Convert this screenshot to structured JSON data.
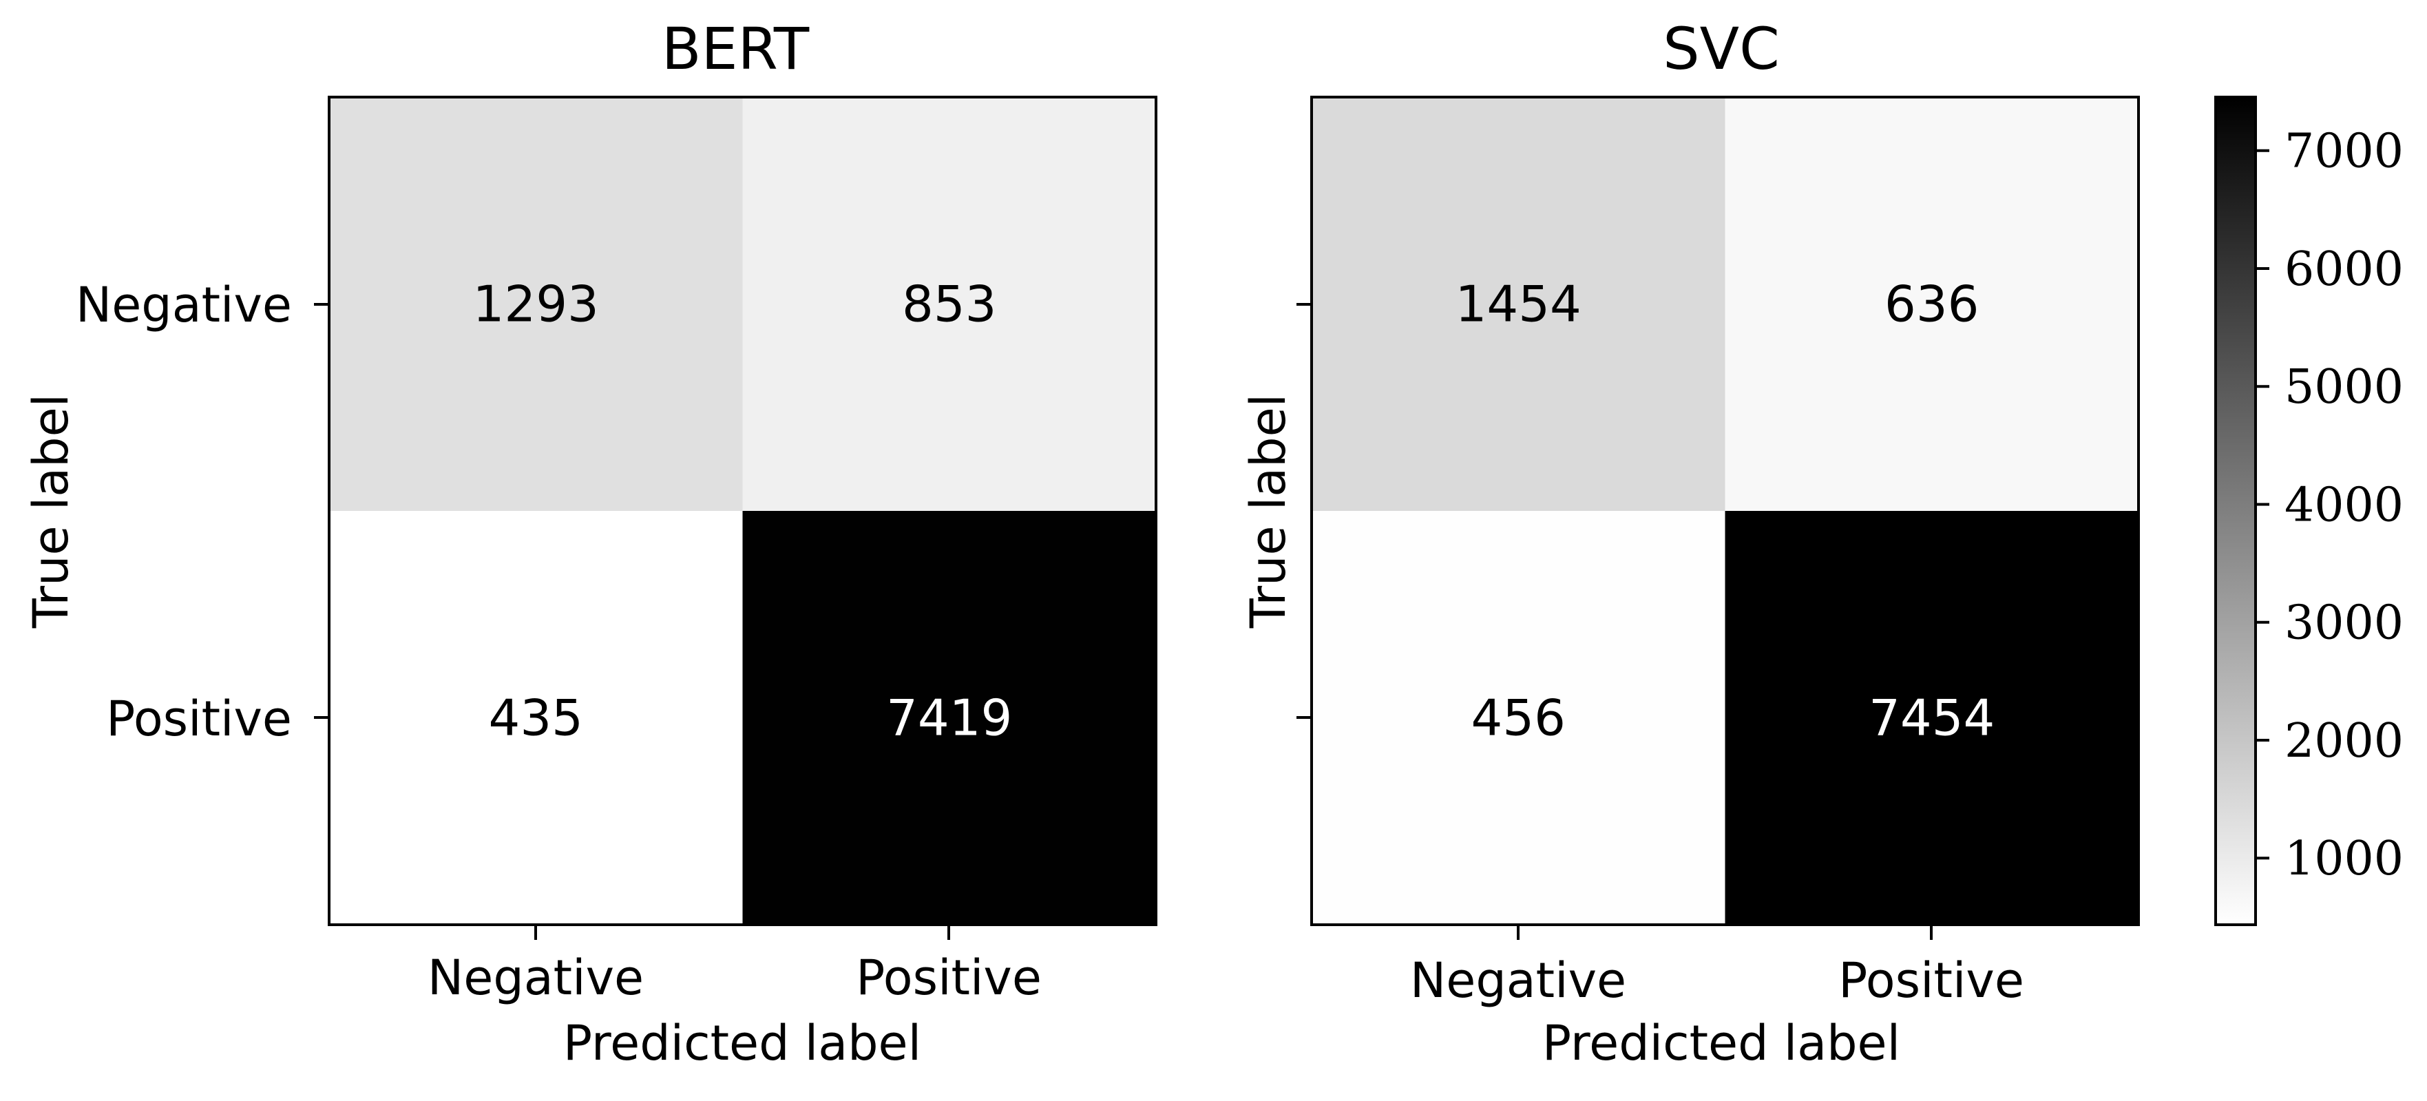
{
  "chart_data": [
    {
      "type": "heatmap",
      "title": "BERT",
      "xlabel": "Predicted label",
      "ylabel": "True label",
      "x_categories": [
        "Negative",
        "Positive"
      ],
      "y_categories": [
        "Negative",
        "Positive"
      ],
      "matrix": [
        [
          1293,
          853
        ],
        [
          435,
          7419
        ]
      ],
      "colormap": "gray_r"
    },
    {
      "type": "heatmap",
      "title": "SVC",
      "xlabel": "Predicted label",
      "ylabel": "True label",
      "x_categories": [
        "Negative",
        "Positive"
      ],
      "y_categories": [
        "Negative",
        "Positive"
      ],
      "matrix": [
        [
          1454,
          636
        ],
        [
          456,
          7454
        ]
      ],
      "colormap": "gray_r"
    }
  ],
  "colorbar": {
    "range": [
      435,
      7454
    ],
    "ticks": [
      1000,
      2000,
      3000,
      4000,
      5000,
      6000,
      7000
    ],
    "tick_labels": [
      "1000",
      "2000",
      "3000",
      "4000",
      "5000",
      "6000",
      "7000"
    ],
    "low_color": "#ffffff",
    "high_color": "#000000"
  }
}
